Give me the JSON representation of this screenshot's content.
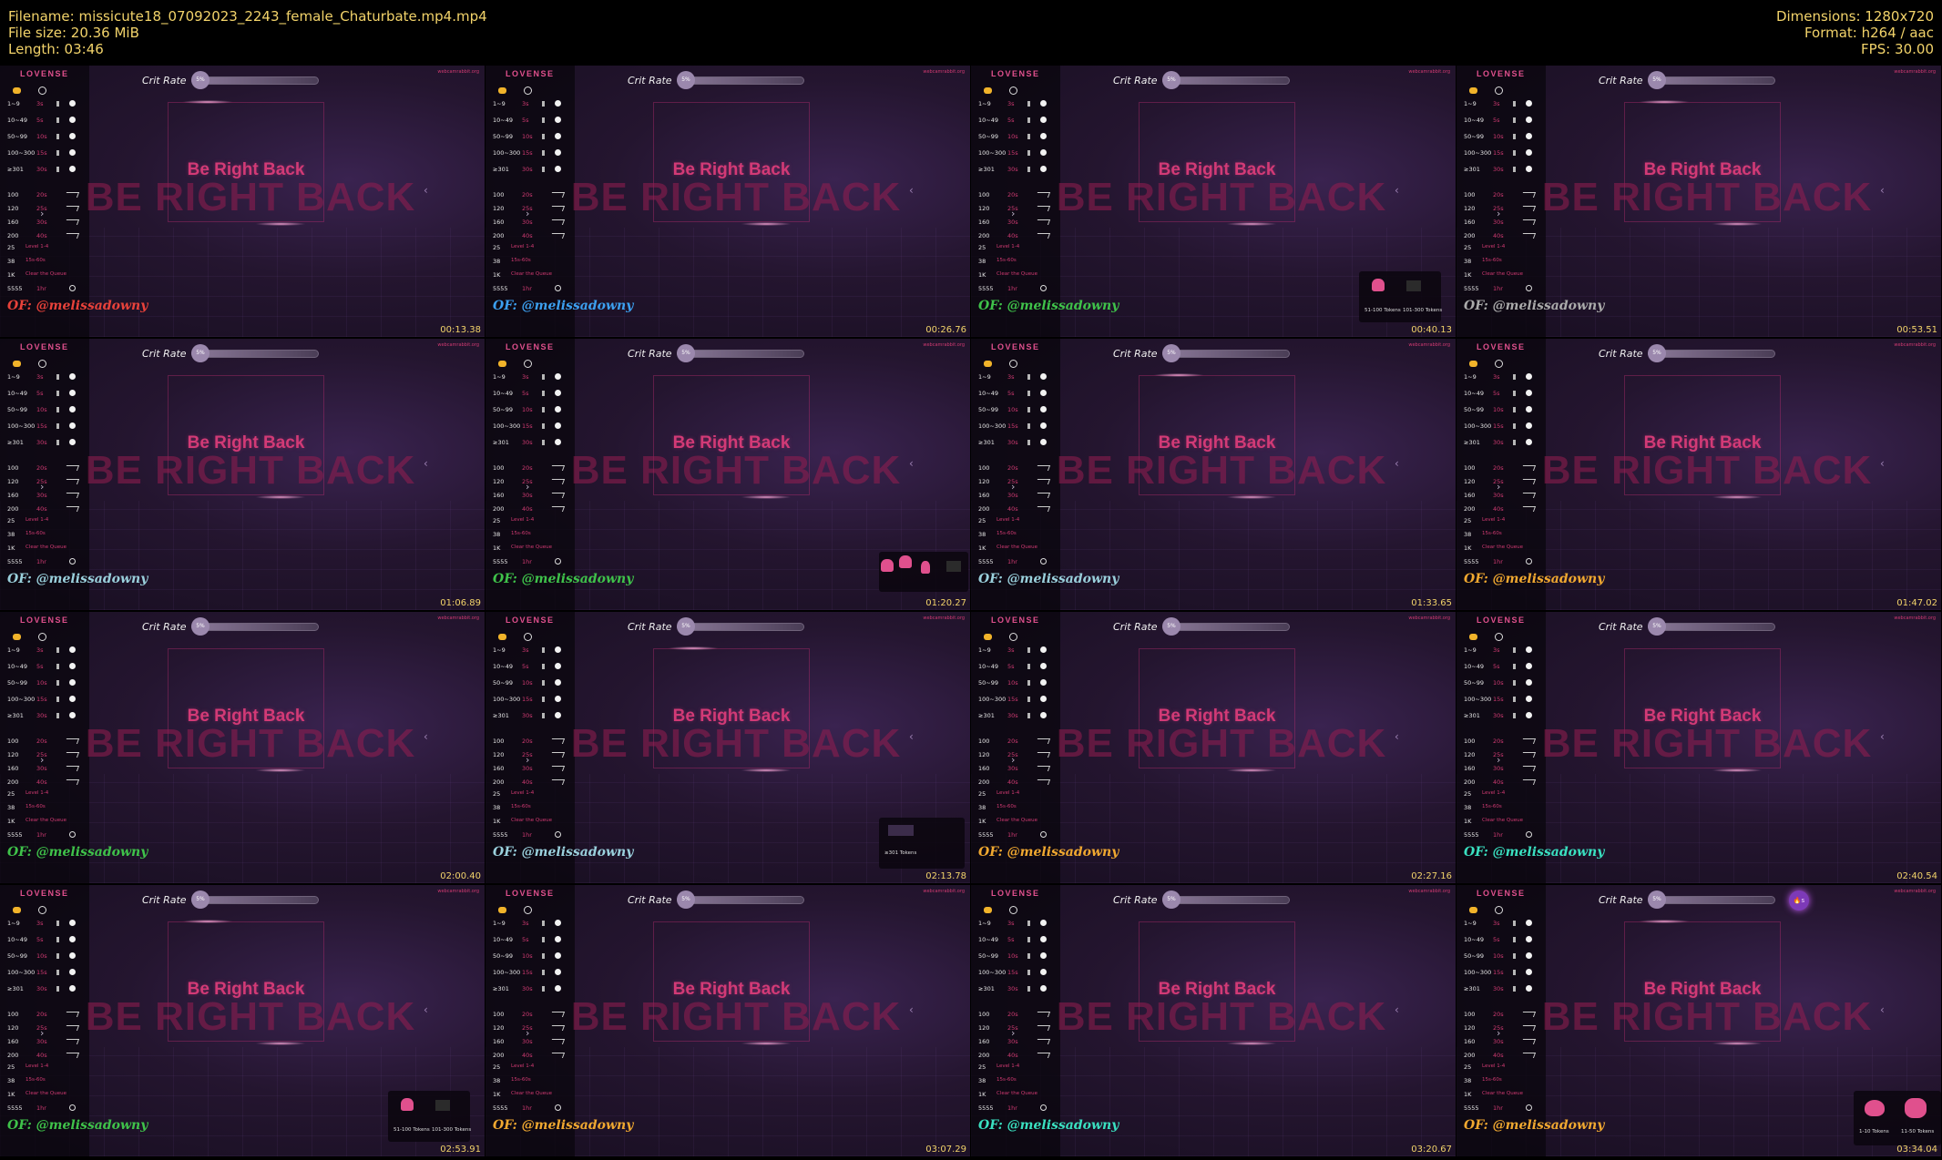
{
  "header": {
    "filename": "Filename: missicute18_07092023_2243_female_Chaturbate.mp4.mp4",
    "filesize": "File size: 20.36 MiB",
    "length": "Length: 03:46",
    "dimensions": "Dimensions: 1280x720",
    "format": "Format: h264 / aac",
    "fps": "FPS: 30.00"
  },
  "common": {
    "brand": "LOVENSE",
    "crit_label": "Crit Rate",
    "crit_value": "5%",
    "site_tag": "webcamrabbit.org",
    "brb_main": "Be Right Back",
    "brb_shadow": "BE RIGHT BACK",
    "of_label": "OF: @melissadowny",
    "panel_rows": [
      {
        "label": "1~9",
        "dur": "3s",
        "kind": "bars"
      },
      {
        "label": "10~49",
        "dur": "5s",
        "kind": "bars"
      },
      {
        "label": "50~99",
        "dur": "10s",
        "kind": "bars"
      },
      {
        "label": "100~300",
        "dur": "15s",
        "kind": "bars"
      },
      {
        "label": "≥301",
        "dur": "30s",
        "kind": "bars"
      },
      {
        "label": "100",
        "dur": "20s",
        "kind": "wave"
      },
      {
        "label": "120",
        "dur": "25s",
        "kind": "wave"
      },
      {
        "label": "160",
        "dur": "30s",
        "kind": "wave"
      },
      {
        "label": "200",
        "dur": "40s",
        "kind": "wave"
      },
      {
        "label": "25",
        "dur": "Level 1-4",
        "kind": "text"
      },
      {
        "label": "38",
        "dur": "15s-60s",
        "kind": "text"
      },
      {
        "label": "1K",
        "dur": "Clear the Queue",
        "kind": "text"
      },
      {
        "label": "5555",
        "dur": "1hr",
        "kind": "dot"
      }
    ],
    "tips": {
      "t51_100": "51-100 Tokens",
      "t101_300": "101-300 Tokens",
      "t301": "≥301 Tokens",
      "t1_10": "1-10 Tokens",
      "t11_50": "11-50 Tokens"
    },
    "fire_icon": "fire-emoji-icon"
  },
  "tiles": [
    {
      "time": "00:13.38",
      "of_color": "#e8423a",
      "tip": "none",
      "shadow_glow": "top"
    },
    {
      "time": "00:26.76",
      "of_color": "#3ca0f0",
      "tip": "none",
      "shadow_glow": "none"
    },
    {
      "time": "00:40.13",
      "of_color": "#3fc24a",
      "tip": "51-300",
      "shadow_glow": "none"
    },
    {
      "time": "00:53.51",
      "of_color": "#aaaaaa",
      "tip": "none",
      "shadow_glow": "top"
    },
    {
      "time": "01:06.89",
      "of_color": "#9ad0dc",
      "tip": "none",
      "shadow_glow": "none"
    },
    {
      "time": "01:20.27",
      "of_color": "#3fc24a",
      "tip": "multi",
      "shadow_glow": "none"
    },
    {
      "time": "01:33.65",
      "of_color": "#9ad0dc",
      "tip": "none",
      "shadow_glow": "top"
    },
    {
      "time": "01:47.02",
      "of_color": "#f0a830",
      "tip": "none",
      "shadow_glow": "none"
    },
    {
      "time": "02:00.40",
      "of_color": "#3fc24a",
      "tip": "none",
      "shadow_glow": "none"
    },
    {
      "time": "02:13.78",
      "of_color": "#9ad0dc",
      "tip": "301",
      "shadow_glow": "top"
    },
    {
      "time": "02:27.16",
      "of_color": "#f0a830",
      "tip": "none",
      "shadow_glow": "none"
    },
    {
      "time": "02:40.54",
      "of_color": "#3ae0c0",
      "tip": "none",
      "shadow_glow": "none"
    },
    {
      "time": "02:53.91",
      "of_color": "#3fc24a",
      "tip": "51-300",
      "shadow_glow": "top"
    },
    {
      "time": "03:07.29",
      "of_color": "#f0a830",
      "tip": "none",
      "shadow_glow": "none"
    },
    {
      "time": "03:20.67",
      "of_color": "#3ae0c0",
      "tip": "none",
      "shadow_glow": "none"
    },
    {
      "time": "03:34.04",
      "of_color": "#f0a830",
      "tip": "1-50",
      "shadow_glow": "top"
    }
  ]
}
